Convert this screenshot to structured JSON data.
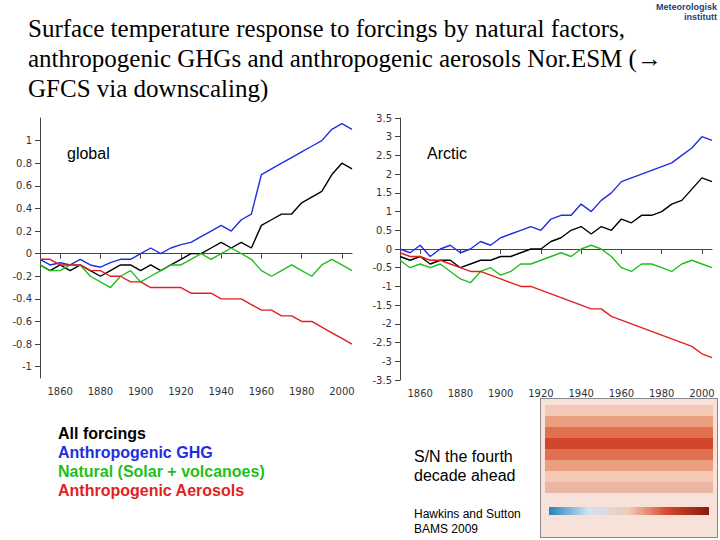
{
  "title": "Surface temperature response to forcings by natural factors, anthropogenic GHGs and anthropogenic aerosols Nor.ESM (→ GFCS via downscaling)",
  "logo": "Meteorologisk institutt",
  "notes": [
    "S/N the fourth decade ahead",
    "Hawkins and Sutton BAMS 2009"
  ],
  "chart_data": [
    {
      "type": "line",
      "title": "global",
      "legend": "bottom-left",
      "grid": false,
      "x": [
        1850,
        1855,
        1860,
        1865,
        1870,
        1875,
        1880,
        1885,
        1890,
        1895,
        1900,
        1905,
        1910,
        1915,
        1920,
        1925,
        1930,
        1935,
        1940,
        1945,
        1950,
        1955,
        1960,
        1965,
        1970,
        1975,
        1980,
        1985,
        1990,
        1995,
        2000,
        2005
      ],
      "xlim": [
        1850,
        2005
      ],
      "xticks": [
        1860,
        1880,
        1900,
        1920,
        1940,
        1960,
        1980,
        2000
      ],
      "ylim": [
        -1.1,
        1.2
      ],
      "yticks": [
        -1,
        -0.8,
        -0.6,
        -0.4,
        -0.2,
        0,
        0.2,
        0.4,
        0.6,
        0.8,
        1
      ],
      "series": [
        {
          "name": "All forcings",
          "color": "#000000",
          "values": [
            -0.1,
            -0.15,
            -0.1,
            -0.15,
            -0.1,
            -0.15,
            -0.2,
            -0.15,
            -0.1,
            -0.1,
            -0.15,
            -0.1,
            -0.15,
            -0.1,
            -0.05,
            0.0,
            0.0,
            0.05,
            0.1,
            0.05,
            0.1,
            0.05,
            0.25,
            0.3,
            0.35,
            0.35,
            0.45,
            0.5,
            0.55,
            0.7,
            0.8,
            0.75
          ]
        },
        {
          "name": "Anthropogenic GHG",
          "color": "#1f2fe0",
          "values": [
            -0.05,
            -0.1,
            -0.08,
            -0.1,
            -0.05,
            -0.1,
            -0.12,
            -0.08,
            -0.05,
            -0.05,
            0.0,
            0.05,
            0.0,
            0.05,
            0.08,
            0.1,
            0.15,
            0.2,
            0.25,
            0.2,
            0.3,
            0.35,
            0.7,
            0.75,
            0.8,
            0.85,
            0.9,
            0.95,
            1.0,
            1.1,
            1.15,
            1.1
          ]
        },
        {
          "name": "Natural (Solar + volcanoes)",
          "color": "#1fbf1f",
          "values": [
            -0.1,
            -0.15,
            -0.15,
            -0.1,
            -0.1,
            -0.2,
            -0.25,
            -0.3,
            -0.2,
            -0.15,
            -0.25,
            -0.2,
            -0.15,
            -0.1,
            -0.1,
            -0.05,
            0.0,
            -0.05,
            0.0,
            0.05,
            0.0,
            -0.05,
            -0.15,
            -0.2,
            -0.15,
            -0.1,
            -0.15,
            -0.2,
            -0.1,
            -0.05,
            -0.1,
            -0.15
          ]
        },
        {
          "name": "Anthropogenic Aerosols",
          "color": "#e01f1f",
          "values": [
            -0.05,
            -0.05,
            -0.1,
            -0.1,
            -0.1,
            -0.15,
            -0.15,
            -0.2,
            -0.2,
            -0.25,
            -0.25,
            -0.3,
            -0.3,
            -0.3,
            -0.3,
            -0.35,
            -0.35,
            -0.35,
            -0.4,
            -0.4,
            -0.4,
            -0.45,
            -0.5,
            -0.5,
            -0.55,
            -0.55,
            -0.6,
            -0.6,
            -0.65,
            -0.7,
            -0.75,
            -0.8
          ]
        }
      ]
    },
    {
      "type": "line",
      "title": "Arctic",
      "grid": false,
      "x": [
        1850,
        1855,
        1860,
        1865,
        1870,
        1875,
        1880,
        1885,
        1890,
        1895,
        1900,
        1905,
        1910,
        1915,
        1920,
        1925,
        1930,
        1935,
        1940,
        1945,
        1950,
        1955,
        1960,
        1965,
        1970,
        1975,
        1980,
        1985,
        1990,
        1995,
        2000,
        2005
      ],
      "xlim": [
        1850,
        2005
      ],
      "xticks": [
        1860,
        1880,
        1900,
        1920,
        1940,
        1960,
        1980,
        2000
      ],
      "ylim": [
        -3.5,
        3.5
      ],
      "yticks": [
        -3.5,
        -3,
        -2.5,
        -2,
        -1.5,
        -1,
        -0.5,
        0,
        0.5,
        1,
        1.5,
        2,
        2.5,
        3,
        3.5
      ],
      "series": [
        {
          "name": "All forcings",
          "color": "#000000",
          "values": [
            -0.2,
            -0.3,
            -0.2,
            -0.4,
            -0.3,
            -0.3,
            -0.5,
            -0.4,
            -0.3,
            -0.3,
            -0.2,
            -0.2,
            -0.1,
            0,
            0,
            0.2,
            0.3,
            0.5,
            0.6,
            0.4,
            0.6,
            0.5,
            0.8,
            0.7,
            0.9,
            0.9,
            1.0,
            1.2,
            1.3,
            1.6,
            1.9,
            1.8
          ]
        },
        {
          "name": "Anthropogenic GHG",
          "color": "#1f2fe0",
          "values": [
            0,
            -0.1,
            0.1,
            -0.2,
            0,
            0.1,
            -0.1,
            0,
            0.2,
            0.1,
            0.3,
            0.4,
            0.5,
            0.6,
            0.5,
            0.8,
            0.9,
            0.9,
            1.2,
            1.0,
            1.3,
            1.5,
            1.8,
            1.9,
            2.0,
            2.1,
            2.2,
            2.3,
            2.5,
            2.7,
            3.0,
            2.9
          ]
        },
        {
          "name": "Natural (Solar + volcanoes)",
          "color": "#1fbf1f",
          "values": [
            -0.3,
            -0.5,
            -0.4,
            -0.5,
            -0.4,
            -0.6,
            -0.8,
            -0.9,
            -0.6,
            -0.5,
            -0.7,
            -0.6,
            -0.4,
            -0.4,
            -0.3,
            -0.2,
            -0.1,
            -0.2,
            0,
            0.1,
            0,
            -0.2,
            -0.5,
            -0.6,
            -0.4,
            -0.4,
            -0.5,
            -0.6,
            -0.4,
            -0.3,
            -0.4,
            -0.5
          ]
        },
        {
          "name": "Anthropogenic Aerosols",
          "color": "#e01f1f",
          "values": [
            -0.1,
            -0.2,
            -0.2,
            -0.3,
            -0.3,
            -0.4,
            -0.5,
            -0.6,
            -0.6,
            -0.7,
            -0.8,
            -0.9,
            -1.0,
            -1.0,
            -1.1,
            -1.2,
            -1.3,
            -1.4,
            -1.5,
            -1.6,
            -1.6,
            -1.8,
            -1.9,
            -2.0,
            -2.1,
            -2.2,
            -2.3,
            -2.4,
            -2.5,
            -2.6,
            -2.8,
            -2.9
          ]
        }
      ]
    }
  ]
}
